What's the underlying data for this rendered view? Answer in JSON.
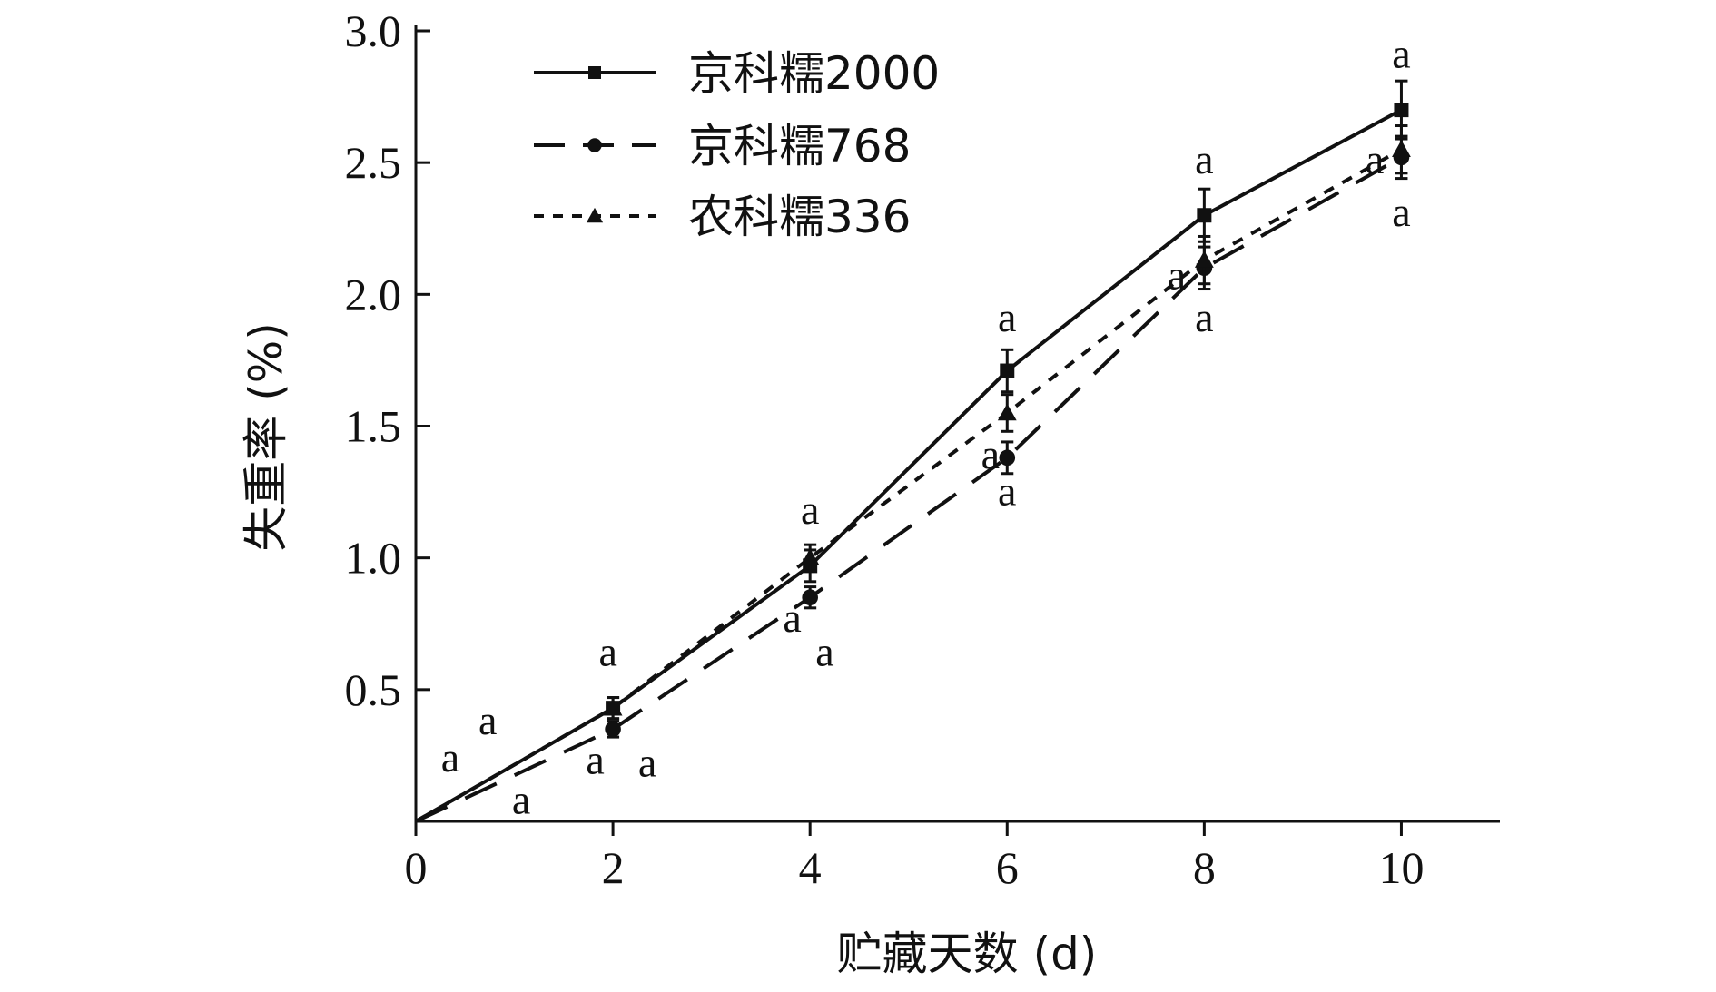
{
  "chart_data": {
    "type": "line",
    "title": "",
    "xlabel": "贮藏天数 (d)",
    "ylabel": "失重率 (%)",
    "xlim": [
      0,
      11
    ],
    "ylim": [
      0,
      3.0
    ],
    "x_ticks": [
      0,
      2,
      4,
      6,
      8,
      10
    ],
    "x_tick_labels": [
      "0",
      "2",
      "4",
      "6",
      "8",
      "10"
    ],
    "y_ticks": [
      0.5,
      1.0,
      1.5,
      2.0,
      2.5,
      3.0
    ],
    "y_tick_labels": [
      "0.5",
      "1.0",
      "1.5",
      "2.0",
      "2.5",
      "3.0"
    ],
    "grid": false,
    "legend_position": "top-left",
    "colors": {
      "line": "#111111",
      "axis": "#111111",
      "background": "#ffffff"
    },
    "series": [
      {
        "name": "京科糯2000",
        "line_style": "solid",
        "marker": "square",
        "x": [
          0,
          2,
          4,
          6,
          8,
          10
        ],
        "y": [
          0.0,
          0.43,
          0.97,
          1.71,
          2.3,
          2.7
        ],
        "error": [
          0,
          0.04,
          0.06,
          0.08,
          0.1,
          0.11
        ]
      },
      {
        "name": "京科糯768",
        "line_style": "dashed",
        "marker": "circle",
        "x": [
          0,
          2,
          4,
          6,
          8,
          10
        ],
        "y": [
          0.0,
          0.35,
          0.85,
          1.38,
          2.1,
          2.52
        ],
        "error": [
          0,
          0.03,
          0.04,
          0.06,
          0.08,
          0.08
        ]
      },
      {
        "name": "农科糯336",
        "line_style": "dotted",
        "marker": "triangle",
        "x": [
          0,
          2,
          4,
          6,
          8,
          10
        ],
        "y": [
          0.0,
          0.43,
          1.0,
          1.55,
          2.13,
          2.55
        ],
        "error": [
          0,
          0.04,
          0.05,
          0.07,
          0.09,
          0.09
        ]
      }
    ],
    "annotations": [
      {
        "text": "a",
        "x": 0.35,
        "y": 0.19,
        "anchor": "middle"
      },
      {
        "text": "a",
        "x": 0.73,
        "y": 0.33,
        "anchor": "middle"
      },
      {
        "text": "a",
        "x": 1.07,
        "y": 0.03,
        "anchor": "middle"
      },
      {
        "text": "a",
        "x": 1.95,
        "y": 0.59,
        "anchor": "middle"
      },
      {
        "text": "a",
        "x": 1.82,
        "y": 0.18,
        "anchor": "middle"
      },
      {
        "text": "a",
        "x": 2.35,
        "y": 0.17,
        "anchor": "middle"
      },
      {
        "text": "a",
        "x": 4.0,
        "y": 1.13,
        "anchor": "middle"
      },
      {
        "text": "a",
        "x": 3.82,
        "y": 0.72,
        "anchor": "middle"
      },
      {
        "text": "a",
        "x": 4.15,
        "y": 0.59,
        "anchor": "middle"
      },
      {
        "text": "a",
        "x": 6.0,
        "y": 1.86,
        "anchor": "middle"
      },
      {
        "text": "a",
        "x": 5.83,
        "y": 1.34,
        "anchor": "middle"
      },
      {
        "text": "a",
        "x": 6.0,
        "y": 1.2,
        "anchor": "middle"
      },
      {
        "text": "a",
        "x": 8.0,
        "y": 2.46,
        "anchor": "middle"
      },
      {
        "text": "a",
        "x": 7.72,
        "y": 2.02,
        "anchor": "middle"
      },
      {
        "text": "a",
        "x": 8.0,
        "y": 1.86,
        "anchor": "middle"
      },
      {
        "text": "a",
        "x": 10.0,
        "y": 2.86,
        "anchor": "middle"
      },
      {
        "text": "a",
        "x": 9.73,
        "y": 2.46,
        "anchor": "middle"
      },
      {
        "text": "a",
        "x": 10.0,
        "y": 2.26,
        "anchor": "middle"
      }
    ]
  }
}
